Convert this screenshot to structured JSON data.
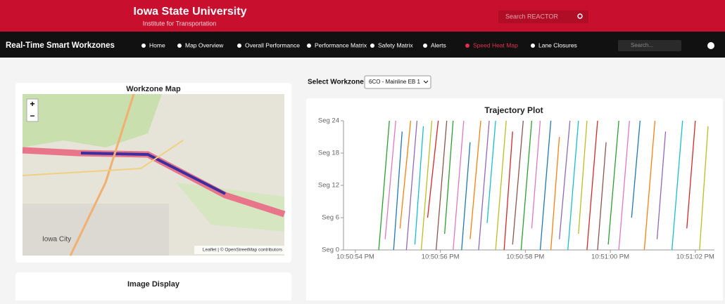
{
  "header": {
    "title": "Iowa State University",
    "subtitle": "Institute for Transportation",
    "search_placeholder": "Search REACTOR"
  },
  "nav": {
    "brand": "Real-Time Smart Workzones",
    "items": [
      "Home",
      "Map Overview",
      "Overall Performance",
      "Performance Matrix",
      "Safety Matrix",
      "Alerts",
      "Speed Heat Map",
      "Lane Closures"
    ],
    "active": 6,
    "search_placeholder": "Search..."
  },
  "map_card": {
    "title": "Workzone Map",
    "zoom_in": "+",
    "zoom_out": "−",
    "place_label": "Iowa City",
    "attribution": "Leaflet | © OpenStreetMap contributors"
  },
  "image_card": {
    "title": "Image Display"
  },
  "workzone_select": {
    "label": "Select Workzone:",
    "selected": "6CO - Mainline EB 1"
  },
  "chart_data": {
    "type": "line",
    "title": "Trajectory Plot",
    "xlim": [
      -0.28,
      8.45
    ],
    "xticks": [
      {
        "value": 0,
        "label": "10:50:54 PM"
      },
      {
        "value": 2,
        "label": "10:50:56 PM"
      },
      {
        "value": 4,
        "label": "10:50:58 PM"
      },
      {
        "value": 6,
        "label": "10:51:00 PM"
      },
      {
        "value": 8,
        "label": "10:51:02 PM"
      }
    ],
    "ylim": [
      0,
      24
    ],
    "yticks": [
      {
        "value": 0,
        "label": "Seg 0"
      },
      {
        "value": 6,
        "label": "Seg 6"
      },
      {
        "value": 12,
        "label": "Seg 12"
      },
      {
        "value": 18,
        "label": "Seg 18"
      },
      {
        "value": 24,
        "label": "Seg 24"
      }
    ],
    "series": [
      {
        "color": "#2ca02c",
        "x": [
          0.55,
          0.8
        ],
        "values": [
          0,
          24
        ]
      },
      {
        "color": "#e377c2",
        "x": [
          0.7,
          0.95
        ],
        "values": [
          2,
          24
        ]
      },
      {
        "color": "#1f77b4",
        "x": [
          0.9,
          1.1
        ],
        "values": [
          0,
          22
        ]
      },
      {
        "color": "#ff7f0e",
        "x": [
          1.05,
          1.3
        ],
        "values": [
          4,
          24
        ]
      },
      {
        "color": "#9467bd",
        "x": [
          1.2,
          1.45
        ],
        "values": [
          0,
          24
        ]
      },
      {
        "color": "#17becf",
        "x": [
          1.4,
          1.6
        ],
        "values": [
          1,
          23
        ]
      },
      {
        "color": "#bcbd22",
        "x": [
          1.55,
          1.8
        ],
        "values": [
          0,
          24
        ]
      },
      {
        "color": "#d62728",
        "x": [
          1.7,
          1.95
        ],
        "values": [
          6,
          24
        ]
      },
      {
        "color": "#8c564b",
        "x": [
          1.9,
          2.15
        ],
        "values": [
          0,
          24
        ]
      },
      {
        "color": "#2ca02c",
        "x": [
          2.1,
          2.3
        ],
        "values": [
          3,
          24
        ]
      },
      {
        "color": "#e377c2",
        "x": [
          2.3,
          2.55
        ],
        "values": [
          0,
          24
        ]
      },
      {
        "color": "#1f77b4",
        "x": [
          2.5,
          2.7
        ],
        "values": [
          0,
          20
        ]
      },
      {
        "color": "#ff7f0e",
        "x": [
          2.7,
          2.95
        ],
        "values": [
          2,
          24
        ]
      },
      {
        "color": "#9467bd",
        "x": [
          2.9,
          3.15
        ],
        "values": [
          0,
          24
        ]
      },
      {
        "color": "#17becf",
        "x": [
          3.1,
          3.3
        ],
        "values": [
          5,
          24
        ]
      },
      {
        "color": "#bcbd22",
        "x": [
          3.3,
          3.55
        ],
        "values": [
          0,
          24
        ]
      },
      {
        "color": "#d62728",
        "x": [
          3.5,
          3.7
        ],
        "values": [
          0,
          22
        ]
      },
      {
        "color": "#8c564b",
        "x": [
          3.7,
          3.95
        ],
        "values": [
          1,
          24
        ]
      },
      {
        "color": "#2ca02c",
        "x": [
          3.9,
          4.15
        ],
        "values": [
          0,
          24
        ]
      },
      {
        "color": "#e377c2",
        "x": [
          4.15,
          4.35
        ],
        "values": [
          4,
          24
        ]
      },
      {
        "color": "#1f77b4",
        "x": [
          4.35,
          4.6
        ],
        "values": [
          0,
          24
        ]
      },
      {
        "color": "#ff7f0e",
        "x": [
          4.6,
          4.8
        ],
        "values": [
          0,
          21
        ]
      },
      {
        "color": "#9467bd",
        "x": [
          4.8,
          5.05
        ],
        "values": [
          2,
          24
        ]
      },
      {
        "color": "#17becf",
        "x": [
          5.0,
          5.25
        ],
        "values": [
          0,
          24
        ]
      },
      {
        "color": "#bcbd22",
        "x": [
          5.25,
          5.45
        ],
        "values": [
          3,
          24
        ]
      },
      {
        "color": "#d62728",
        "x": [
          5.45,
          5.7
        ],
        "values": [
          0,
          24
        ]
      },
      {
        "color": "#8c564b",
        "x": [
          5.7,
          5.9
        ],
        "values": [
          0,
          20
        ]
      },
      {
        "color": "#2ca02c",
        "x": [
          5.95,
          6.2
        ],
        "values": [
          1,
          24
        ]
      },
      {
        "color": "#e377c2",
        "x": [
          6.2,
          6.45
        ],
        "values": [
          0,
          24
        ]
      },
      {
        "color": "#1f77b4",
        "x": [
          6.5,
          6.7
        ],
        "values": [
          6,
          24
        ]
      },
      {
        "color": "#ff7f0e",
        "x": [
          6.8,
          7.05
        ],
        "values": [
          0,
          24
        ]
      },
      {
        "color": "#9467bd",
        "x": [
          7.1,
          7.3
        ],
        "values": [
          2,
          22
        ]
      },
      {
        "color": "#17becf",
        "x": [
          7.45,
          7.7
        ],
        "values": [
          0,
          24
        ]
      },
      {
        "color": "#d62728",
        "x": [
          7.8,
          8.0
        ],
        "values": [
          4,
          24
        ]
      },
      {
        "color": "#bcbd22",
        "x": [
          8.1,
          8.3
        ],
        "values": [
          0,
          23
        ]
      }
    ]
  }
}
